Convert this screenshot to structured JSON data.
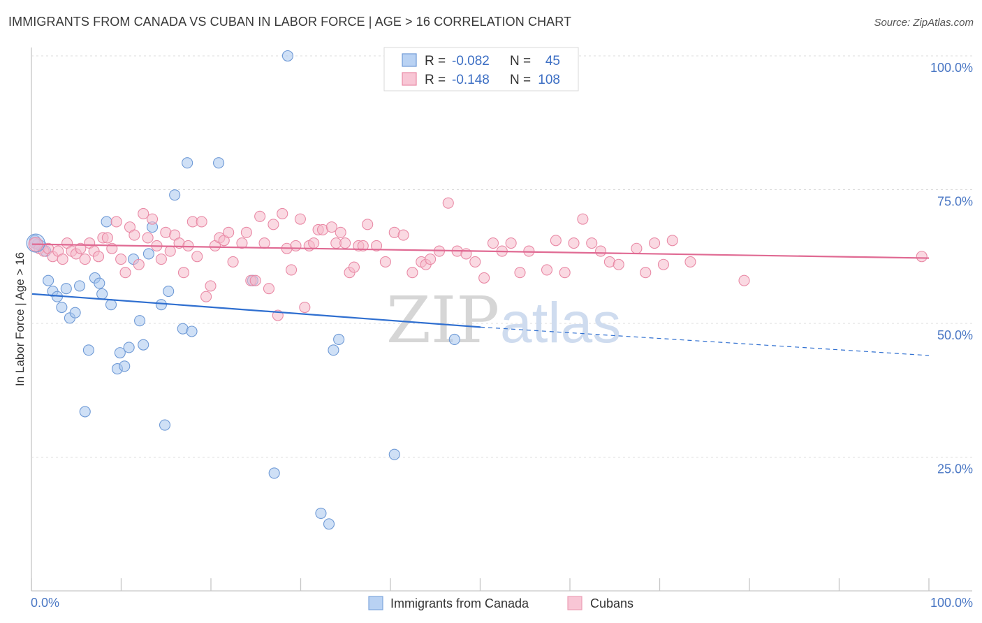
{
  "header": {
    "title": "IMMIGRANTS FROM CANADA VS CUBAN IN LABOR FORCE | AGE > 16 CORRELATION CHART",
    "source": "Source: ZipAtlas.com"
  },
  "watermark": {
    "zip": "ZIP",
    "atlas": "atlas"
  },
  "legend_top": {
    "rows": [
      {
        "r_label": "R =",
        "r_value": "-0.082",
        "n_label": "N =",
        "n_value": "45",
        "color": "#a8c6ef",
        "stroke": "#6f9ad6"
      },
      {
        "r_label": "R =",
        "r_value": "-0.148",
        "n_label": "N =",
        "n_value": "108",
        "color": "#f6b9cb",
        "stroke": "#e98aa6"
      }
    ]
  },
  "legend_bottom": {
    "items": [
      {
        "label": "Immigrants from Canada",
        "color": "#b9d2f3",
        "stroke": "#7fa6dc"
      },
      {
        "label": "Cubans",
        "color": "#f8c6d5",
        "stroke": "#ec9fb6"
      }
    ]
  },
  "chart_data": {
    "type": "scatter",
    "title": "IMMIGRANTS FROM CANADA VS CUBAN IN LABOR FORCE | AGE > 16 CORRELATION CHART",
    "xlabel": "",
    "ylabel": "In Labor Force | Age > 16",
    "xlim": [
      0,
      100
    ],
    "ylim": [
      0,
      100
    ],
    "x_tick_labels": [
      "0.0%",
      "100.0%"
    ],
    "y_ticks": [
      25,
      50,
      75,
      100
    ],
    "y_tick_labels": [
      "25.0%",
      "50.0%",
      "75.0%",
      "100.0%"
    ],
    "grid": true,
    "series": [
      {
        "name": "Immigrants from Canada",
        "color": "#a8c6ef",
        "stroke": "#6f9ad6",
        "trend": {
          "x0": 0,
          "y0": 55.5,
          "x1": 50,
          "y1": 49.3,
          "dash_to_x": 100,
          "dash_to_y": 44,
          "color": "#2f6fd0"
        },
        "points": [
          [
            0.3,
            65.5
          ],
          [
            1.0,
            64.5
          ],
          [
            1.5,
            63.5
          ],
          [
            1.8,
            58
          ],
          [
            2.3,
            56
          ],
          [
            2.8,
            55
          ],
          [
            3.3,
            53
          ],
          [
            3.8,
            56.5
          ],
          [
            4.2,
            51
          ],
          [
            4.8,
            52
          ],
          [
            5.3,
            57
          ],
          [
            6.3,
            45
          ],
          [
            7.0,
            58.5
          ],
          [
            7.5,
            57.5
          ],
          [
            7.8,
            55.5
          ],
          [
            8.3,
            69
          ],
          [
            8.8,
            53.5
          ],
          [
            9.5,
            41.5
          ],
          [
            9.8,
            44.5
          ],
          [
            10.3,
            42
          ],
          [
            10.8,
            45.5
          ],
          [
            11.3,
            62
          ],
          [
            12.0,
            50.5
          ],
          [
            12.4,
            46
          ],
          [
            13.0,
            63
          ],
          [
            13.4,
            68
          ],
          [
            14.4,
            53.5
          ],
          [
            15.2,
            56
          ],
          [
            15.9,
            74
          ],
          [
            16.8,
            49
          ],
          [
            17.3,
            80
          ],
          [
            17.8,
            48.5
          ],
          [
            20.8,
            80
          ],
          [
            24.6,
            58
          ],
          [
            27.0,
            22
          ],
          [
            28.5,
            100
          ],
          [
            32.2,
            14.5
          ],
          [
            33.1,
            12.5
          ],
          [
            33.6,
            45
          ],
          [
            34.2,
            47
          ],
          [
            40.4,
            25.5
          ],
          [
            47.1,
            47
          ],
          [
            5.9,
            33.5
          ],
          [
            14.8,
            31
          ],
          [
            0.6,
            64.8
          ]
        ]
      },
      {
        "name": "Cubans",
        "color": "#f6b9cb",
        "stroke": "#e98aa6",
        "trend": {
          "x0": 0,
          "y0": 64.8,
          "x1": 100,
          "y1": 62.2,
          "color": "#e06a93"
        },
        "points": [
          [
            0.3,
            65
          ],
          [
            0.8,
            64
          ],
          [
            1.3,
            63.5
          ],
          [
            1.8,
            64
          ],
          [
            2.3,
            62.5
          ],
          [
            2.9,
            63.5
          ],
          [
            3.4,
            62
          ],
          [
            3.9,
            65
          ],
          [
            4.4,
            63.5
          ],
          [
            4.9,
            63
          ],
          [
            5.4,
            64
          ],
          [
            5.9,
            62
          ],
          [
            6.4,
            65
          ],
          [
            6.9,
            63.5
          ],
          [
            7.4,
            62.5
          ],
          [
            7.9,
            66
          ],
          [
            8.4,
            66
          ],
          [
            8.9,
            64
          ],
          [
            9.4,
            69
          ],
          [
            9.9,
            62
          ],
          [
            10.4,
            59.5
          ],
          [
            10.9,
            68
          ],
          [
            11.4,
            66.5
          ],
          [
            11.9,
            61
          ],
          [
            12.4,
            70.5
          ],
          [
            12.9,
            66
          ],
          [
            13.4,
            69.5
          ],
          [
            13.9,
            64.5
          ],
          [
            14.4,
            62
          ],
          [
            14.9,
            67
          ],
          [
            15.4,
            63.5
          ],
          [
            15.9,
            66.5
          ],
          [
            16.4,
            65
          ],
          [
            16.9,
            59.5
          ],
          [
            17.4,
            64.5
          ],
          [
            17.9,
            69
          ],
          [
            18.4,
            62.5
          ],
          [
            18.9,
            69
          ],
          [
            19.4,
            55
          ],
          [
            19.9,
            57
          ],
          [
            20.4,
            64.5
          ],
          [
            20.9,
            66
          ],
          [
            21.4,
            65.5
          ],
          [
            21.9,
            67
          ],
          [
            22.4,
            61.5
          ],
          [
            23.4,
            65
          ],
          [
            23.9,
            67
          ],
          [
            24.4,
            58
          ],
          [
            24.9,
            58
          ],
          [
            25.4,
            70
          ],
          [
            25.9,
            65
          ],
          [
            26.4,
            56.5
          ],
          [
            26.9,
            68.5
          ],
          [
            27.4,
            51.5
          ],
          [
            27.9,
            70.5
          ],
          [
            28.4,
            64
          ],
          [
            28.9,
            60
          ],
          [
            29.4,
            64.5
          ],
          [
            29.9,
            69.5
          ],
          [
            30.4,
            53
          ],
          [
            30.9,
            64.5
          ],
          [
            31.4,
            65
          ],
          [
            31.9,
            67.5
          ],
          [
            32.4,
            67.5
          ],
          [
            33.4,
            68
          ],
          [
            33.9,
            65
          ],
          [
            34.4,
            67
          ],
          [
            34.9,
            65
          ],
          [
            35.4,
            59.5
          ],
          [
            35.9,
            60.5
          ],
          [
            36.4,
            64.5
          ],
          [
            36.9,
            64.5
          ],
          [
            37.4,
            68.5
          ],
          [
            38.4,
            64.5
          ],
          [
            39.4,
            61.5
          ],
          [
            40.4,
            67
          ],
          [
            41.4,
            66.5
          ],
          [
            42.4,
            59.5
          ],
          [
            43.4,
            61.5
          ],
          [
            43.9,
            61
          ],
          [
            44.4,
            62
          ],
          [
            45.4,
            63.5
          ],
          [
            46.4,
            72.5
          ],
          [
            47.4,
            63.5
          ],
          [
            48.4,
            63
          ],
          [
            49.4,
            61.5
          ],
          [
            50.4,
            58.5
          ],
          [
            51.4,
            65
          ],
          [
            52.4,
            63.5
          ],
          [
            53.4,
            65
          ],
          [
            54.4,
            59.5
          ],
          [
            55.4,
            63.5
          ],
          [
            57.4,
            60
          ],
          [
            58.4,
            65.5
          ],
          [
            59.4,
            59.5
          ],
          [
            60.4,
            65
          ],
          [
            61.4,
            69.5
          ],
          [
            62.4,
            65
          ],
          [
            63.4,
            63.5
          ],
          [
            64.4,
            61.5
          ],
          [
            65.4,
            61
          ],
          [
            67.4,
            64
          ],
          [
            68.4,
            59.5
          ],
          [
            69.4,
            65
          ],
          [
            70.4,
            61
          ],
          [
            71.4,
            65.5
          ],
          [
            73.4,
            61.5
          ],
          [
            79.4,
            58
          ],
          [
            99.2,
            62.5
          ]
        ]
      }
    ]
  }
}
